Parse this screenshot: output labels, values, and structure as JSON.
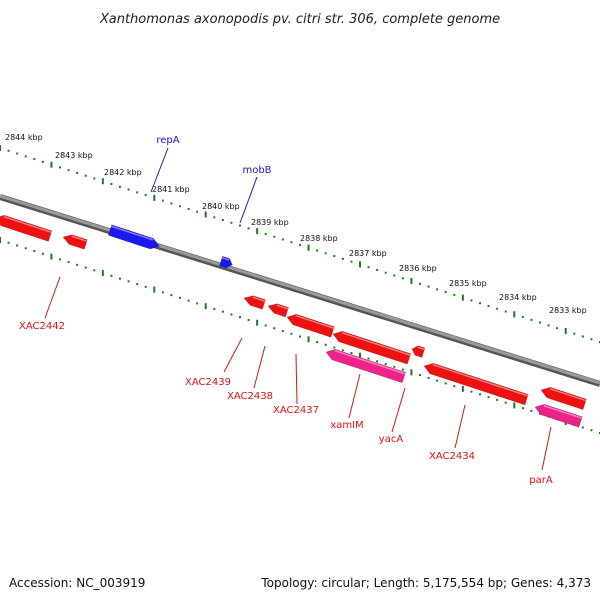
{
  "title": "Xanthomonas axonopodis pv. citri str. 306, complete genome",
  "footer": {
    "accession": "Accession: NC_003919",
    "summary": "Topology: circular; Length: 5,175,554 bp; Genes: 4,373"
  },
  "colors": {
    "backbone": "#7a7a7a",
    "scale_dots": "#1e7a1e",
    "gene_red": "#ee1111",
    "gene_pink": "#ee2288",
    "gene_blue": "#1a1aee",
    "label_red": "#dd1111",
    "label_blue": "#1a1acc"
  },
  "scale": {
    "upper_ticks": [
      "2844 kbp",
      "2843 kbp",
      "2842 kbp",
      "2841 kbp",
      "2840 kbp",
      "2839 kbp",
      "2838 kbp",
      "2837 kbp",
      "2836 kbp",
      "2835 kbp",
      "2834 kbp",
      "2833 kbp"
    ]
  },
  "genes": [
    {
      "name": "XAC2442",
      "strand": "-",
      "color": "red",
      "labeled": true
    },
    {
      "name": "",
      "strand": "-",
      "color": "red",
      "labeled": false
    },
    {
      "name": "repA",
      "strand": "+",
      "color": "blue",
      "labeled": true
    },
    {
      "name": "mobB",
      "strand": "+",
      "color": "blue",
      "labeled": true
    },
    {
      "name": "XAC2439",
      "strand": "-",
      "color": "red",
      "labeled": true
    },
    {
      "name": "XAC2438",
      "strand": "-",
      "color": "red",
      "labeled": true
    },
    {
      "name": "XAC2437",
      "strand": "-",
      "color": "red",
      "labeled": true
    },
    {
      "name": "xamIM",
      "strand": "-",
      "color": "pink",
      "labeled": true
    },
    {
      "name": "yacA",
      "strand": "-",
      "color": "red",
      "labeled": true
    },
    {
      "name": "XAC2434",
      "strand": "-",
      "color": "red",
      "labeled": true
    },
    {
      "name": "parA",
      "strand": "-",
      "color": "pink",
      "labeled": true
    },
    {
      "name": "",
      "strand": "-",
      "color": "red",
      "labeled": false
    },
    {
      "name": "",
      "strand": "-",
      "color": "red",
      "labeled": false
    }
  ]
}
